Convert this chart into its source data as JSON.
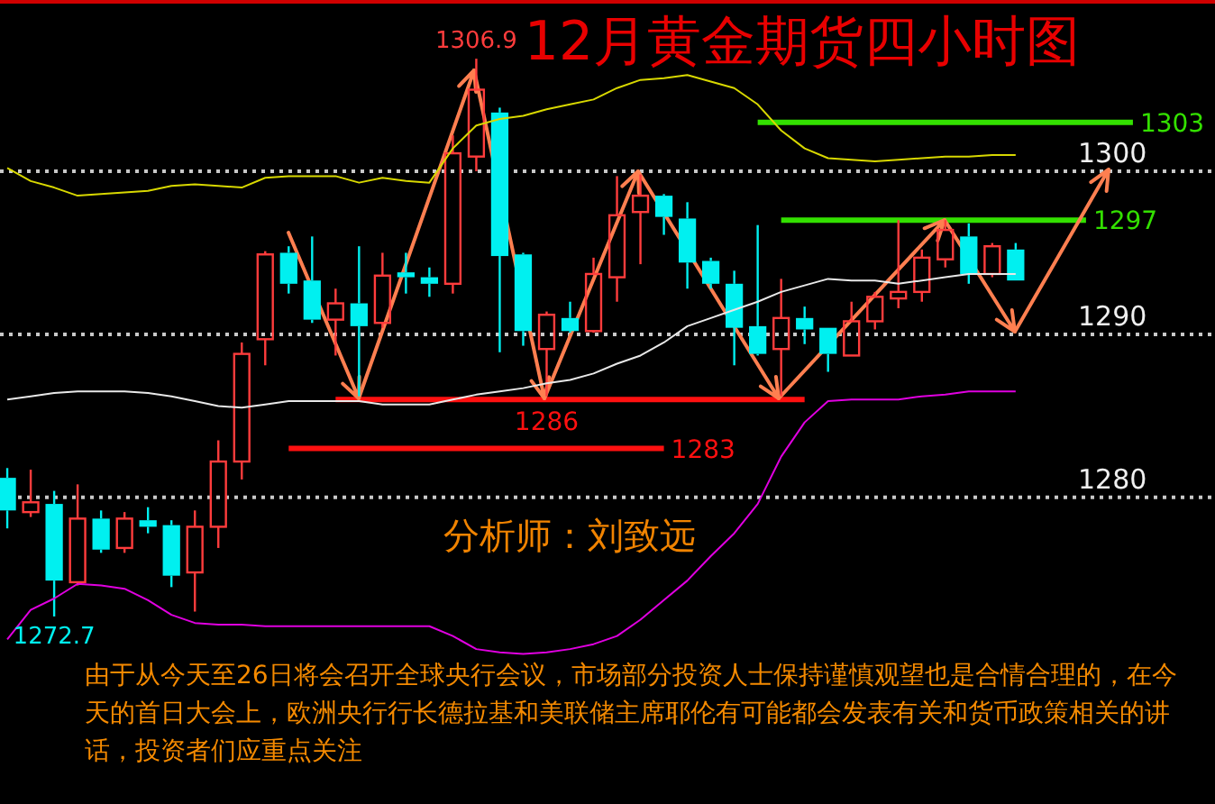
{
  "chart_data": {
    "type": "candlestick",
    "title": "12月黄金期货四小时图",
    "categories": [
      null,
      null,
      null,
      null,
      null,
      null,
      null,
      null,
      null,
      null,
      null,
      null,
      null,
      null,
      null,
      null,
      null,
      null,
      null,
      null,
      null,
      null,
      null,
      null,
      null,
      null,
      null,
      null,
      null,
      null,
      null,
      null,
      null,
      null,
      null,
      null,
      null,
      null,
      null,
      null,
      null,
      null,
      null,
      null,
      null,
      null,
      null,
      null,
      null
    ],
    "ohlc": [
      [
        1281.2,
        1281.8,
        1278.1,
        1279.2
      ],
      [
        1279.1,
        1281.7,
        1278.8,
        1279.7
      ],
      [
        1279.6,
        1280.4,
        1272.7,
        1274.9
      ],
      [
        1274.8,
        1280.8,
        1274.6,
        1278.7
      ],
      [
        1278.7,
        1279.2,
        1276.6,
        1276.8
      ],
      [
        1276.9,
        1279.1,
        1276.6,
        1278.7
      ],
      [
        1278.6,
        1279.4,
        1277.8,
        1278.2
      ],
      [
        1278.3,
        1278.6,
        1274.5,
        1275.2
      ],
      [
        1275.4,
        1279.2,
        1273.0,
        1278.2
      ],
      [
        1278.2,
        1283.5,
        1276.9,
        1282.2
      ],
      [
        1282.2,
        1289.5,
        1281.1,
        1288.8
      ],
      [
        1289.7,
        1295.1,
        1288.1,
        1294.9
      ],
      [
        1295.0,
        1295.4,
        1292.5,
        1293.1
      ],
      [
        1293.3,
        1296.0,
        1290.7,
        1290.9
      ],
      [
        1290.9,
        1292.8,
        1288.7,
        1291.9
      ],
      [
        1291.9,
        1295.4,
        1286.2,
        1290.5
      ],
      [
        1290.7,
        1295.0,
        1290.4,
        1293.6
      ],
      [
        1293.8,
        1295.0,
        1292.5,
        1293.5
      ],
      [
        1293.5,
        1294.1,
        1292.3,
        1293.1
      ],
      [
        1293.1,
        1302.2,
        1292.5,
        1301.1
      ],
      [
        1300.9,
        1306.9,
        1300.0,
        1305.0
      ],
      [
        1303.6,
        1303.9,
        1288.9,
        1294.8
      ],
      [
        1294.9,
        1295.0,
        1289.3,
        1290.2
      ],
      [
        1289.1,
        1291.4,
        1286.2,
        1291.2
      ],
      [
        1291.0,
        1292.0,
        1290.1,
        1290.2
      ],
      [
        1290.2,
        1294.7,
        1290.1,
        1293.7
      ],
      [
        1293.5,
        1299.7,
        1292.0,
        1297.3
      ],
      [
        1297.5,
        1299.8,
        1294.3,
        1298.5
      ],
      [
        1298.5,
        1298.6,
        1296.1,
        1297.2
      ],
      [
        1297.1,
        1298.1,
        1292.8,
        1294.4
      ],
      [
        1294.5,
        1294.7,
        1292.8,
        1293.1
      ],
      [
        1293.1,
        1293.9,
        1288.1,
        1290.4
      ],
      [
        1290.5,
        1296.7,
        1288.7,
        1288.8
      ],
      [
        1289.1,
        1293.4,
        1286.2,
        1291.0
      ],
      [
        1291.0,
        1291.7,
        1289.4,
        1290.3
      ],
      [
        1290.4,
        1290.4,
        1287.7,
        1288.8
      ],
      [
        1288.7,
        1292.0,
        1288.7,
        1290.8
      ],
      [
        1290.8,
        1292.6,
        1290.3,
        1292.3
      ],
      [
        1292.2,
        1297.0,
        1291.6,
        1292.6
      ],
      [
        1292.6,
        1295.2,
        1292.0,
        1294.7
      ],
      [
        1294.6,
        1297.0,
        1294.1,
        1296.4
      ],
      [
        1296.0,
        1296.8,
        1293.1,
        1293.7
      ],
      [
        1293.7,
        1295.6,
        1293.5,
        1295.4
      ],
      [
        1295.2,
        1295.6,
        1293.3,
        1293.3
      ],
      null,
      null,
      null,
      null,
      null
    ],
    "colors": [
      "#00f0f0",
      "#ff3c3c",
      "#00f0f0",
      "#ff3c3c",
      "#00f0f0",
      "#ff3c3c",
      "#00f0f0",
      "#00f0f0",
      "#ff3c3c",
      "#ff3c3c",
      "#ff3c3c",
      "#ff3c3c",
      "#00f0f0",
      "#00f0f0",
      "#ff3c3c",
      "#00f0f0",
      "#ff3c3c",
      "#00f0f0",
      "#00f0f0",
      "#ff3c3c",
      "#ff3c3c",
      "#00f0f0",
      "#00f0f0",
      "#ff3c3c",
      "#00f0f0",
      "#ff3c3c",
      "#ff3c3c",
      "#ff3c3c",
      "#00f0f0",
      "#00f0f0",
      "#00f0f0",
      "#00f0f0",
      "#00f0f0",
      "#ff3c3c",
      "#00f0f0",
      "#00f0f0",
      "#ff3c3c",
      "#ff3c3c",
      "#ff3c3c",
      "#ff3c3c",
      "#ff3c3c",
      "#00f0f0",
      "#ff3c3c",
      "#00f0f0",
      null,
      null,
      null,
      null,
      null
    ],
    "value_labels": [
      null,
      null,
      "1272.7",
      null,
      null,
      null,
      null,
      null,
      null,
      null,
      null,
      null,
      null,
      null,
      null,
      null,
      null,
      null,
      null,
      null,
      "1306.9",
      null,
      null,
      null,
      null,
      null,
      null,
      null,
      null,
      null,
      null,
      null,
      null,
      null,
      null,
      null,
      null,
      null,
      null,
      null,
      null,
      null,
      null,
      null,
      null,
      null,
      null,
      null,
      null
    ],
    "ylim": [
      1261.2,
      1310.5
    ],
    "yticks": [
      1280,
      1290,
      1300
    ],
    "grid": "y",
    "series": [
      {
        "type": "line",
        "color": "#d8d800",
        "values": [
          1300.2,
          1299.4,
          1299.0,
          1298.5,
          1298.6,
          1298.7,
          1298.8,
          1299.1,
          1299.2,
          1299.1,
          1299.0,
          1299.6,
          1299.7,
          1299.7,
          1299.7,
          1299.3,
          1299.6,
          1299.4,
          1299.3,
          1301.4,
          1302.8,
          1303.2,
          1303.4,
          1303.8,
          1304.1,
          1304.4,
          1305.1,
          1305.6,
          1305.7,
          1305.9,
          1305.5,
          1305.1,
          1304.1,
          1302.5,
          1301.4,
          1300.8,
          1300.7,
          1300.6,
          1300.7,
          1300.8,
          1300.9,
          1300.9,
          1301.0,
          1301.0,
          null,
          null,
          null,
          null,
          null
        ]
      },
      {
        "type": "line",
        "color": "#e8e8e8",
        "values": [
          1286.0,
          1286.2,
          1286.4,
          1286.5,
          1286.5,
          1286.5,
          1286.4,
          1286.2,
          1285.9,
          1285.6,
          1285.5,
          1285.7,
          1285.9,
          1285.9,
          1285.9,
          1285.9,
          1285.7,
          1285.7,
          1285.7,
          1286.0,
          1286.3,
          1286.5,
          1286.7,
          1287.0,
          1287.2,
          1287.6,
          1288.2,
          1288.7,
          1289.5,
          1290.5,
          1291.0,
          1291.5,
          1292.0,
          1292.6,
          1293.0,
          1293.4,
          1293.3,
          1293.3,
          1293.1,
          1293.3,
          1293.5,
          1293.7,
          1293.7,
          1293.7,
          null,
          null,
          null,
          null,
          null
        ]
      },
      {
        "type": "line",
        "color": "#e000e0",
        "values": [
          1271.3,
          1273.1,
          1273.8,
          1274.7,
          1274.6,
          1274.4,
          1273.7,
          1272.8,
          1272.3,
          1272.2,
          1272.2,
          1272.1,
          1272.1,
          1272.1,
          1272.1,
          1272.1,
          1272.1,
          1272.1,
          1272.1,
          1271.5,
          1270.7,
          1270.5,
          1270.4,
          1270.5,
          1270.7,
          1271.0,
          1271.5,
          1272.5,
          1273.7,
          1274.9,
          1276.4,
          1277.8,
          1279.6,
          1282.5,
          1284.6,
          1285.9,
          1286.0,
          1286.0,
          1286.0,
          1286.2,
          1286.3,
          1286.5,
          1286.5,
          1286.5,
          null,
          null,
          null,
          null,
          null
        ]
      },
      {
        "type": "line",
        "color": "#ff1010",
        "values": [
          null,
          null,
          null,
          null,
          null,
          null,
          null,
          null,
          null,
          null,
          null,
          null,
          null,
          null,
          1286,
          1286,
          1286,
          1286,
          1286,
          1286,
          1286,
          1286,
          1286,
          1286,
          1286,
          1286,
          1286,
          1286,
          1286,
          1286,
          1286,
          1286,
          1286,
          1286,
          1286,
          null,
          null,
          null,
          null,
          null,
          null,
          null,
          null,
          null,
          null,
          null,
          null,
          null,
          null
        ],
        "value_labels": [
          null,
          null,
          null,
          null,
          null,
          null,
          null,
          null,
          null,
          null,
          null,
          null,
          null,
          null,
          null,
          null,
          null,
          null,
          null,
          null,
          null,
          null,
          null,
          "1286",
          null,
          null,
          null,
          null,
          null,
          null,
          null,
          null,
          null,
          null,
          null,
          null,
          null,
          null,
          null,
          null,
          null,
          null,
          null,
          null,
          null,
          null,
          null,
          null,
          null
        ]
      },
      {
        "type": "line",
        "color": "#ff1010",
        "values": [
          null,
          null,
          null,
          null,
          null,
          null,
          null,
          null,
          null,
          null,
          null,
          null,
          1283,
          1283,
          1283,
          1283,
          1283,
          1283,
          1283,
          1283,
          1283,
          1283,
          1283,
          1283,
          1283,
          1283,
          1283,
          1283,
          1283,
          null,
          null,
          null,
          null,
          null,
          null,
          null,
          null,
          null,
          null,
          null,
          null,
          null,
          null,
          null,
          null,
          null,
          null,
          null,
          null
        ],
        "value_labels": [
          null,
          null,
          null,
          null,
          null,
          null,
          null,
          null,
          null,
          null,
          null,
          null,
          null,
          null,
          null,
          null,
          null,
          null,
          null,
          null,
          null,
          null,
          null,
          null,
          null,
          null,
          null,
          null,
          "1283",
          null,
          null,
          null,
          null,
          null,
          null,
          null,
          null,
          null,
          null,
          null,
          null,
          null,
          null,
          null,
          null,
          null,
          null,
          null,
          null
        ]
      },
      {
        "type": "line",
        "color": "#33e000",
        "values": [
          null,
          null,
          null,
          null,
          null,
          null,
          null,
          null,
          null,
          null,
          null,
          null,
          null,
          null,
          null,
          null,
          null,
          null,
          null,
          null,
          null,
          null,
          null,
          null,
          null,
          null,
          null,
          null,
          null,
          null,
          null,
          null,
          1303,
          1303,
          1303,
          1303,
          1303,
          1303,
          1303,
          1303,
          1303,
          1303,
          1303,
          1303,
          1303,
          1303,
          1303,
          1303,
          1303
        ],
        "value_labels": [
          null,
          null,
          null,
          null,
          null,
          null,
          null,
          null,
          null,
          null,
          null,
          null,
          null,
          null,
          null,
          null,
          null,
          null,
          null,
          null,
          null,
          null,
          null,
          null,
          null,
          null,
          null,
          null,
          null,
          null,
          null,
          null,
          null,
          null,
          null,
          null,
          null,
          null,
          null,
          null,
          null,
          null,
          null,
          null,
          null,
          null,
          null,
          null,
          "1303"
        ]
      },
      {
        "type": "line",
        "color": "#33e000",
        "values": [
          null,
          null,
          null,
          null,
          null,
          null,
          null,
          null,
          null,
          null,
          null,
          null,
          null,
          null,
          null,
          null,
          null,
          null,
          null,
          null,
          null,
          null,
          null,
          null,
          null,
          null,
          null,
          null,
          null,
          null,
          null,
          null,
          null,
          1297,
          1297,
          1297,
          1297,
          1297,
          1297,
          1297,
          1297,
          1297,
          1297,
          1297,
          1297,
          1297,
          1297,
          null,
          null
        ],
        "value_labels": [
          null,
          null,
          null,
          null,
          null,
          null,
          null,
          null,
          null,
          null,
          null,
          null,
          null,
          null,
          null,
          null,
          null,
          null,
          null,
          null,
          null,
          null,
          null,
          null,
          null,
          null,
          null,
          null,
          null,
          null,
          null,
          null,
          null,
          null,
          null,
          null,
          null,
          null,
          null,
          null,
          null,
          null,
          null,
          null,
          null,
          null,
          "1297",
          null,
          null
        ]
      }
    ],
    "annotations": [
      "分析师：刘致远",
      "由于从今天至26日将会召开全球央行会议，市场部分投资人士保持谨慎观望也是合情合理的，在今天的首日大会上，欧洲央行行长德拉基和美联储主席耶伦有可能都会发表有关和货币政策相关的讲话，投资者们应重点关注"
    ]
  }
}
